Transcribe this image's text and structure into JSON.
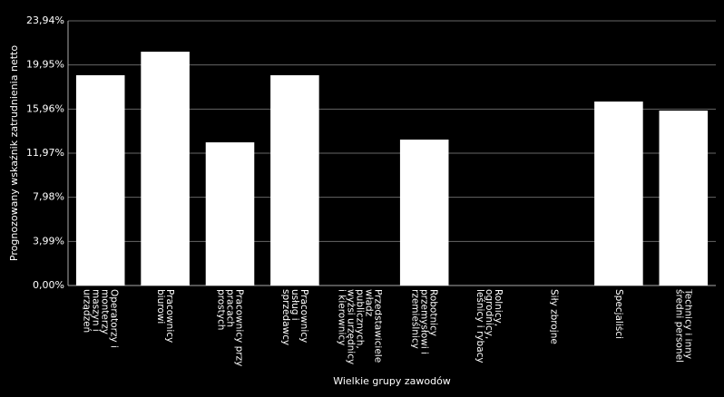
{
  "chart_data": {
    "type": "bar",
    "categories": [
      "Operatorzy i monterzy maszyn i urządzeń",
      "Pracownicy biurowi",
      "Pracownicy przy pracach prostych",
      "Pracownicy usług i sprzedawcy",
      "Przedstawiciele władz publicznych, wyżsi urzędnicy i kierownicy",
      "Robotnicy przemysłowi i rzemieślnicy",
      "Rolnicy, ogrodnicy, leśnicy i rybacy",
      "Siły zbrojne",
      "Specjaliści",
      "Technicy i inny średni personel"
    ],
    "values": [
      19.02,
      21.15,
      12.95,
      19.02,
      0,
      13.2,
      0,
      0,
      16.64,
      15.82
    ],
    "color": "#ffffff",
    "ylim": [
      0,
      23.94
    ],
    "yticks": [
      {
        "value": 0,
        "label": "0,00%"
      },
      {
        "value": 3.99,
        "label": "3,99%"
      },
      {
        "value": 7.98,
        "label": "7,98%"
      },
      {
        "value": 11.97,
        "label": "11,97%"
      },
      {
        "value": 15.96,
        "label": "15,96%"
      },
      {
        "value": 19.95,
        "label": "19,95%"
      },
      {
        "value": 23.94,
        "label": "23,94%"
      }
    ],
    "grid": true,
    "y_label": "Prognozowany wskaźnik zatrudnienia netto",
    "x_label": "Wielkie grupy zawodów"
  }
}
